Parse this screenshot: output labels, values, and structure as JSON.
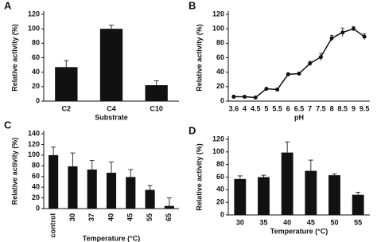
{
  "chart_data": [
    {
      "type": "bar",
      "label": "A",
      "x_label": "Substrate",
      "y_label": "Relative activity (%)",
      "categories": [
        "C2",
        "C4",
        "C10"
      ],
      "values": [
        47,
        100,
        22
      ],
      "errors": [
        9,
        5,
        6
      ],
      "color": "#111111",
      "ylim": [
        0,
        120
      ],
      "yticks": [
        0,
        20,
        40,
        60,
        80,
        100,
        120
      ]
    },
    {
      "type": "line",
      "label": "B",
      "x_label": "pH",
      "y_label": "Relative activity (%)",
      "categories": [
        "3.6",
        "4",
        "4.5",
        "5",
        "5.5",
        "6",
        "6.5",
        "7",
        "7.5",
        "8",
        "8.5",
        "9",
        "9.5"
      ],
      "values": [
        6,
        6,
        5,
        17,
        16,
        37,
        38,
        52,
        61,
        87,
        95,
        100,
        89
      ],
      "errors": [
        2,
        1,
        1,
        1,
        2,
        2,
        2,
        3,
        5,
        4,
        6,
        3,
        4
      ],
      "color": "#111111",
      "ylim": [
        0,
        120
      ],
      "yticks": [
        0,
        20,
        40,
        60,
        80,
        100,
        120
      ]
    },
    {
      "type": "bar",
      "label": "C",
      "x_label": "Temperature (°C)",
      "y_label": "Relative activity (%)",
      "categories": [
        "control",
        "30",
        "37",
        "40",
        "45",
        "55",
        "65"
      ],
      "values": [
        100,
        79,
        73,
        67,
        59,
        35,
        5
      ],
      "errors": [
        15,
        25,
        17,
        20,
        14,
        8,
        15
      ],
      "color": "#111111",
      "ylim": [
        0,
        140
      ],
      "yticks": [
        0,
        20,
        40,
        60,
        80,
        100,
        120,
        140
      ]
    },
    {
      "type": "bar",
      "label": "D",
      "x_label": "Temperature (°C)",
      "y_label": "Relative activity (%)",
      "categories": [
        "30",
        "35",
        "40",
        "45",
        "50",
        "55"
      ],
      "values": [
        57,
        60,
        99,
        70,
        63,
        32
      ],
      "errors": [
        5,
        3,
        17,
        17,
        2,
        4
      ],
      "color": "#111111",
      "ylim": [
        0,
        120
      ],
      "yticks": [
        0,
        20,
        40,
        60,
        80,
        100,
        120
      ]
    }
  ]
}
